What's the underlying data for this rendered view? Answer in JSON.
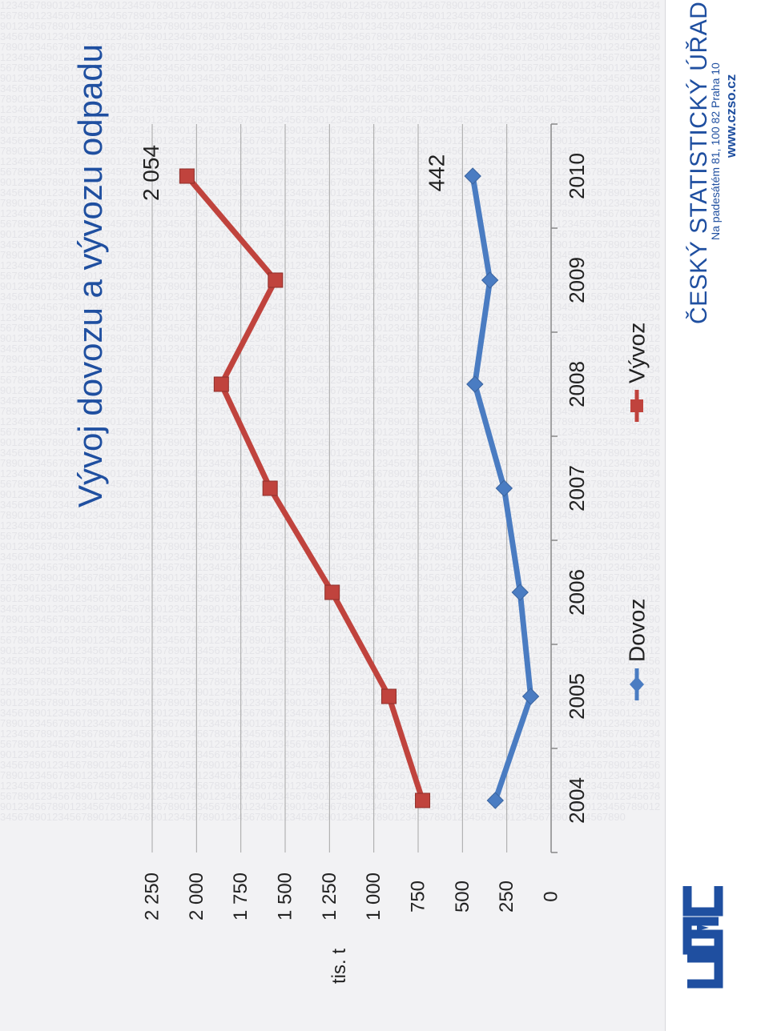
{
  "slide": {
    "title": "Vývoj dovozu a vývozu odpadu",
    "logo_text": "ČSÚ",
    "org_name": "ČESKÝ STATISTICKÝ ÚŘAD",
    "org_address": "Na padesátém 81, 100 82  Praha 10",
    "org_web": "www.czso.cz",
    "watermark_digits": "1234567890"
  },
  "colors": {
    "dovoz": "#4a7cc2",
    "vyvoz": "#c0433d",
    "title": "#1f4fa0",
    "grid": "#a6a6a6",
    "background": "#f2f2f4"
  },
  "chart_data": {
    "type": "line",
    "title": "",
    "xlabel": "",
    "ylabel": "tis. t",
    "categories": [
      "2004",
      "2005",
      "2006",
      "2007",
      "2008",
      "2009",
      "2010"
    ],
    "ylim": [
      0,
      2250
    ],
    "yticks": [
      0,
      250,
      500,
      750,
      1000,
      1250,
      1500,
      1750,
      2000,
      2250
    ],
    "ytick_labels": [
      "0",
      "250",
      "500",
      "750",
      "1 000",
      "1 250",
      "1 500",
      "1 750",
      "2 000",
      "2 250"
    ],
    "grid": true,
    "legend_position": "bottom",
    "series": [
      {
        "name": "Dovoz",
        "color": "#4a7cc2",
        "marker": "diamond",
        "values": [
          315,
          115,
          175,
          265,
          430,
          345,
          442
        ],
        "labels": [
          "",
          "",
          "",
          "",
          "",
          "",
          "442"
        ]
      },
      {
        "name": "Vývoz",
        "color": "#c0433d",
        "marker": "square",
        "values": [
          725,
          915,
          1235,
          1585,
          1860,
          1555,
          2054
        ],
        "labels": [
          "",
          "",
          "",
          "",
          "",
          "",
          "2 054"
        ]
      }
    ]
  }
}
